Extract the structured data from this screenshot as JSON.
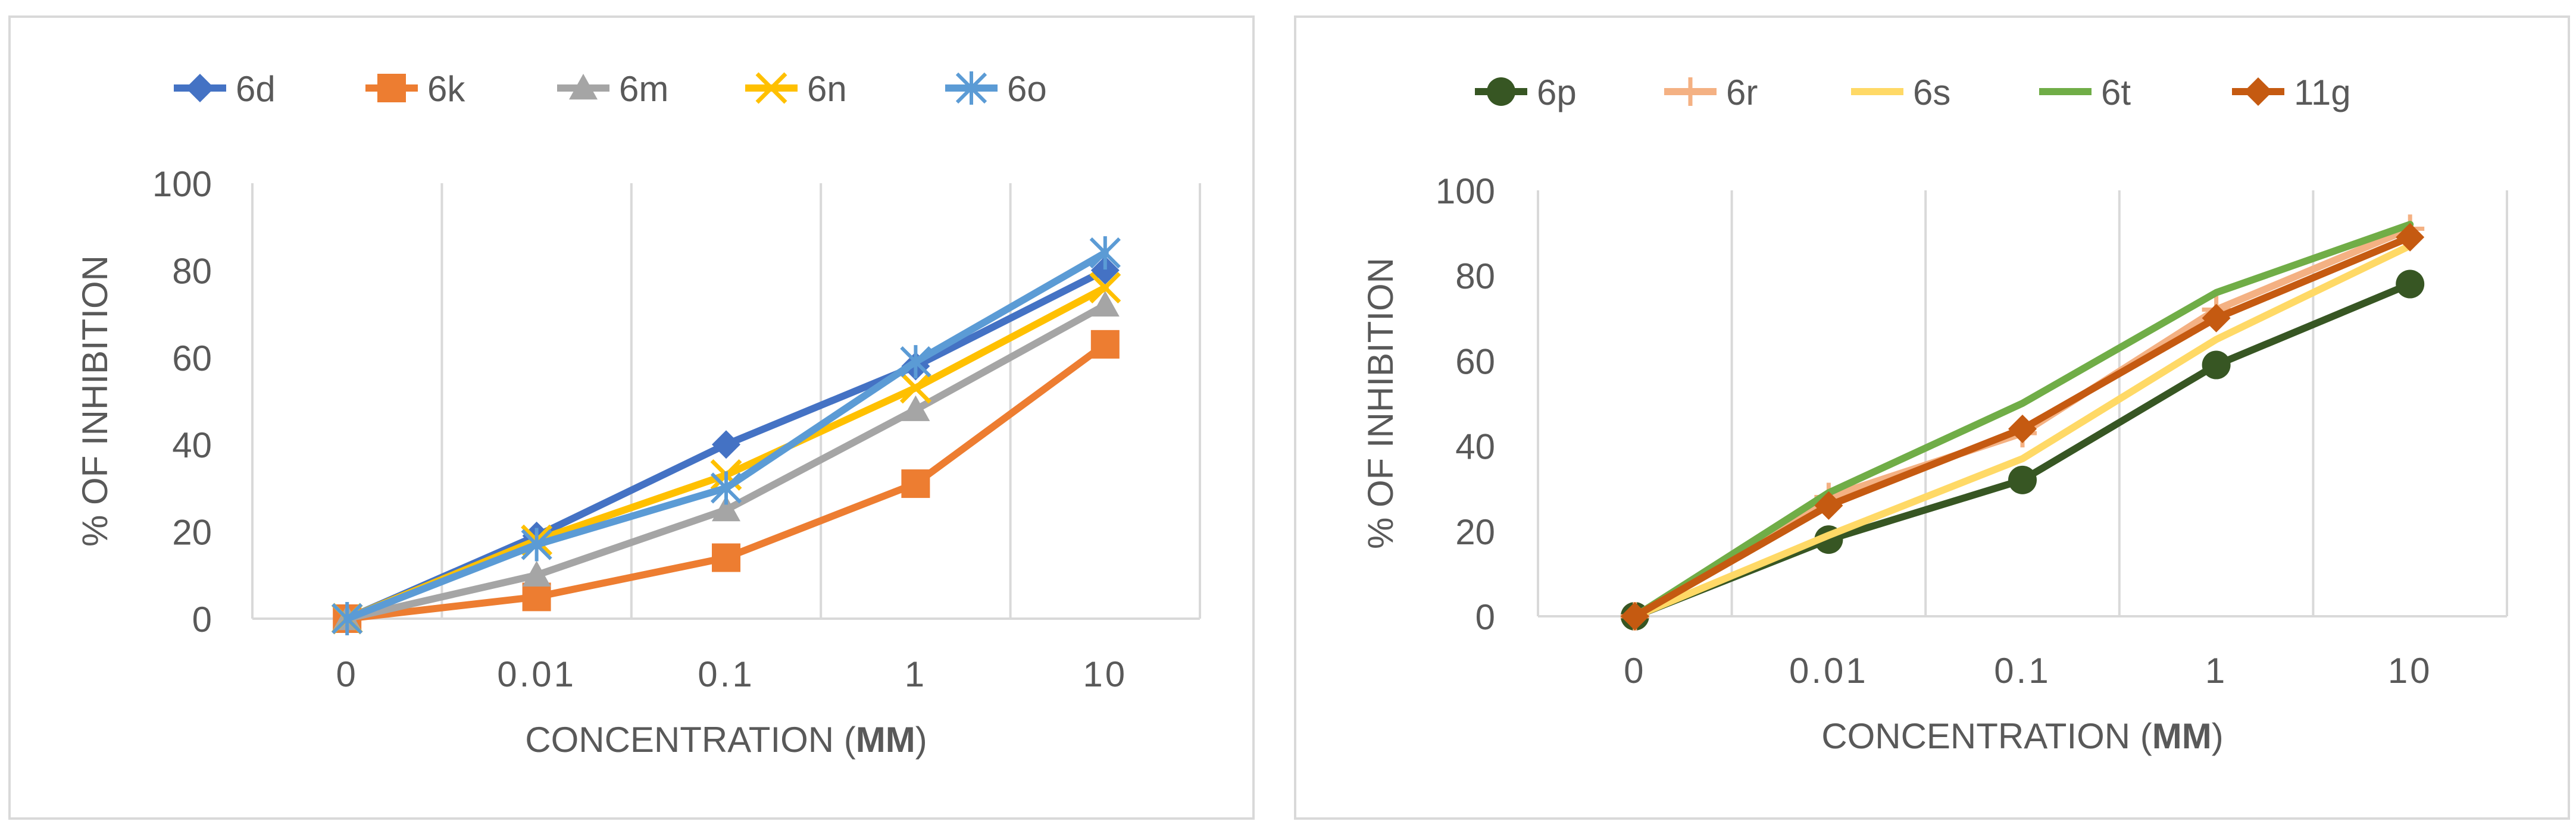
{
  "chart_data": [
    {
      "type": "line",
      "title": "",
      "xlabel": "CONCENTRATION (",
      "xlabel_bold": "MM",
      "xlabel_close": ")",
      "ylabel": "% OF INHIBITION",
      "categories": [
        "0",
        "0.01",
        "0.1",
        "1",
        "10"
      ],
      "ylim": [
        0,
        100
      ],
      "yticks": [
        "0",
        "20",
        "40",
        "60",
        "80",
        "100"
      ],
      "grid": "vertical",
      "legend_position": "top",
      "series": [
        {
          "name": "6d",
          "color": "#4472C4",
          "marker": "diamond",
          "values": [
            0,
            19,
            40,
            58,
            80
          ]
        },
        {
          "name": "6k",
          "color": "#ED7D31",
          "marker": "square",
          "values": [
            0,
            5,
            14,
            31,
            63
          ]
        },
        {
          "name": "6m",
          "color": "#A5A5A5",
          "marker": "triangle",
          "values": [
            0,
            10,
            25,
            48,
            72
          ]
        },
        {
          "name": "6n",
          "color": "#FFC000",
          "marker": "x",
          "values": [
            0,
            18,
            33,
            53,
            76
          ]
        },
        {
          "name": "6o",
          "color": "#5B9BD5",
          "marker": "star",
          "values": [
            0,
            17,
            30,
            59,
            84
          ]
        }
      ]
    },
    {
      "type": "line",
      "title": "",
      "xlabel": "CONCENTRATION (",
      "xlabel_bold": "MM",
      "xlabel_close": ")",
      "ylabel": "% OF INHIBITION",
      "categories": [
        "0",
        "0.01",
        "0.1",
        "1",
        "10"
      ],
      "ylim": [
        0,
        100
      ],
      "yticks": [
        "0",
        "20",
        "40",
        "60",
        "80",
        "100"
      ],
      "grid": "vertical",
      "legend_position": "top",
      "series": [
        {
          "name": "6p",
          "color": "#375623",
          "marker": "circle",
          "values": [
            0,
            18,
            32,
            59,
            78
          ]
        },
        {
          "name": "6r",
          "color": "#F4B183",
          "marker": "plus",
          "values": [
            0,
            28,
            43,
            72,
            91
          ]
        },
        {
          "name": "6s",
          "color": "#FFD966",
          "marker": "none",
          "values": [
            0,
            19,
            37,
            65,
            87
          ]
        },
        {
          "name": "6t",
          "color": "#70AD47",
          "marker": "none",
          "values": [
            0,
            29,
            50,
            76,
            92
          ]
        },
        {
          "name": "11g",
          "color": "#C55A11",
          "marker": "diamond",
          "values": [
            0,
            26,
            44,
            70,
            89
          ]
        }
      ]
    }
  ]
}
